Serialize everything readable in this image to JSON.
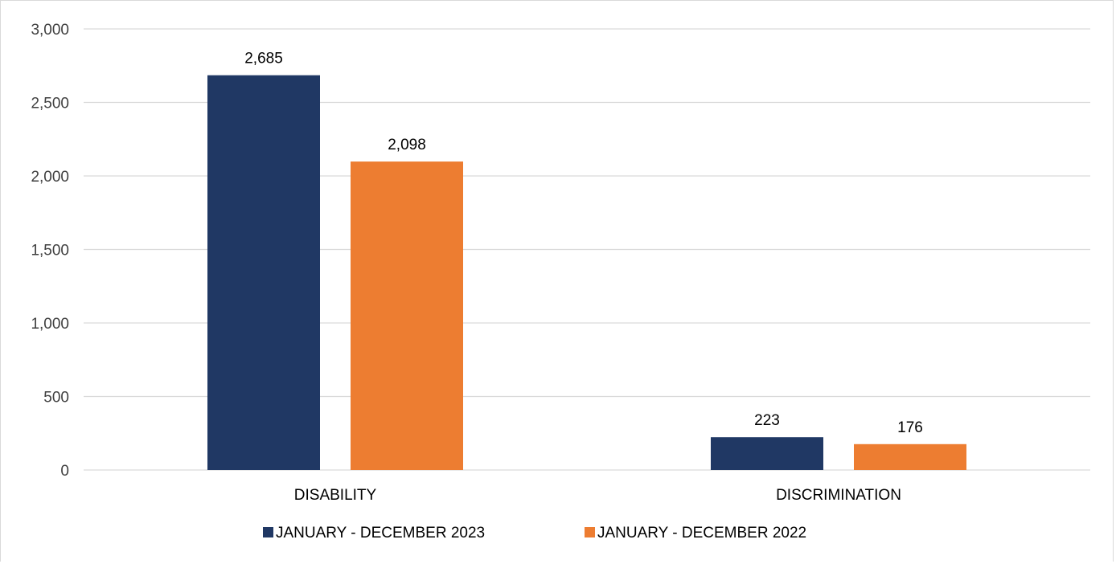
{
  "chart_data": {
    "type": "bar",
    "categories": [
      "DISABILITY",
      "DISCRIMINATION"
    ],
    "series": [
      {
        "name": "JANUARY - DECEMBER 2023",
        "values": [
          2685,
          223
        ],
        "color": "#203864"
      },
      {
        "name": "JANUARY - DECEMBER 2022",
        "values": [
          2098,
          176
        ],
        "color": "#ED7D31"
      }
    ],
    "data_labels": [
      [
        "2,685",
        "223"
      ],
      [
        "2,098",
        "176"
      ]
    ],
    "ylim": [
      0,
      3000
    ],
    "yticks": [
      0,
      500,
      1000,
      1500,
      2000,
      2500,
      3000
    ],
    "ytick_labels": [
      "0",
      "500",
      "1,000",
      "1,500",
      "2,000",
      "2,500",
      "3,000"
    ],
    "grid": true,
    "legend_position": "bottom",
    "gridline_color": "#d9d9d9"
  }
}
